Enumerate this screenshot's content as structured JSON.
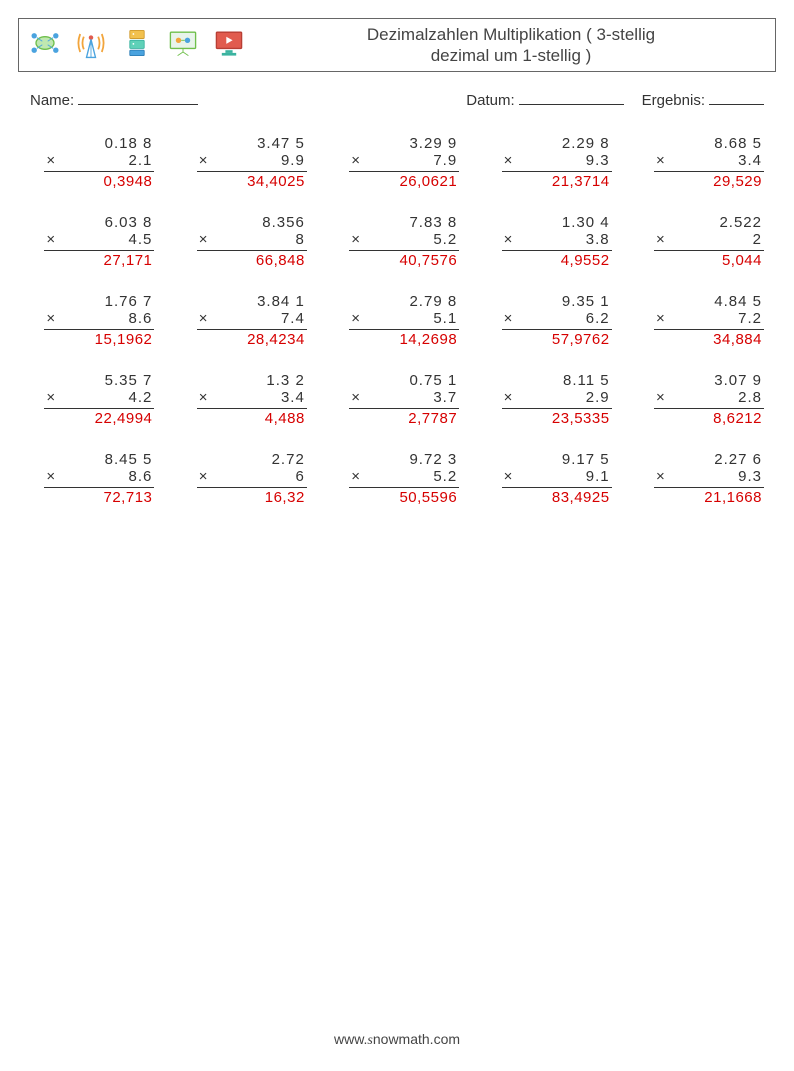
{
  "header": {
    "title_l1": "Dezimalzahlen Multiplikation ( 3-stellig",
    "title_l2": "dezimal um 1-stellig )"
  },
  "fields": {
    "name_label": "Name:",
    "datum_label": "Datum:",
    "ergebnis_label": "Ergebnis:"
  },
  "op_symbol": "×",
  "problems": [
    [
      {
        "a": "0.18 8",
        "b": "2.1",
        "ans": "0,3948"
      },
      {
        "a": "3.47 5",
        "b": "9.9",
        "ans": "34,4025"
      },
      {
        "a": "3.29 9",
        "b": "7.9",
        "ans": "26,0621"
      },
      {
        "a": "2.29 8",
        "b": "9.3",
        "ans": "21,3714"
      },
      {
        "a": "8.68 5",
        "b": "3.4",
        "ans": "29,529"
      }
    ],
    [
      {
        "a": "6.03 8",
        "b": "4.5",
        "ans": "27,171"
      },
      {
        "a": "8.356",
        "b": "8",
        "ans": "66,848"
      },
      {
        "a": "7.83 8",
        "b": "5.2",
        "ans": "40,7576"
      },
      {
        "a": "1.30 4",
        "b": "3.8",
        "ans": "4,9552"
      },
      {
        "a": "2.522",
        "b": "2",
        "ans": "5,044"
      }
    ],
    [
      {
        "a": "1.76 7",
        "b": "8.6",
        "ans": "15,1962"
      },
      {
        "a": "3.84 1",
        "b": "7.4",
        "ans": "28,4234"
      },
      {
        "a": "2.79 8",
        "b": "5.1",
        "ans": "14,2698"
      },
      {
        "a": "9.35 1",
        "b": "6.2",
        "ans": "57,9762"
      },
      {
        "a": "4.84 5",
        "b": "7.2",
        "ans": "34,884"
      }
    ],
    [
      {
        "a": "5.35 7",
        "b": "4.2",
        "ans": "22,4994"
      },
      {
        "a": "1.3 2",
        "b": "3.4",
        "ans": "4,488"
      },
      {
        "a": "0.75 1",
        "b": "3.7",
        "ans": "2,7787"
      },
      {
        "a": "8.11 5",
        "b": "2.9",
        "ans": "23,5335"
      },
      {
        "a": "3.07 9",
        "b": "2.8",
        "ans": "8,6212"
      }
    ],
    [
      {
        "a": "8.45 5",
        "b": "8.6",
        "ans": "72,713"
      },
      {
        "a": "2.72",
        "b": "6",
        "ans": "16,32"
      },
      {
        "a": "9.72 3",
        "b": "5.2",
        "ans": "50,5596"
      },
      {
        "a": "9.17 5",
        "b": "9.1",
        "ans": "83,4925"
      },
      {
        "a": "2.27 6",
        "b": "9.3",
        "ans": "21,1668"
      }
    ]
  ],
  "footer": {
    "prefix": "www.",
    "s": "s",
    "rest": "nowmath.com"
  },
  "icon_colors": {
    "green": "#6fbf4b",
    "blue": "#4aa3df",
    "teal": "#3bb3a0",
    "orange": "#f2a53c",
    "red": "#e15b4e",
    "purple": "#8c6fd1"
  }
}
